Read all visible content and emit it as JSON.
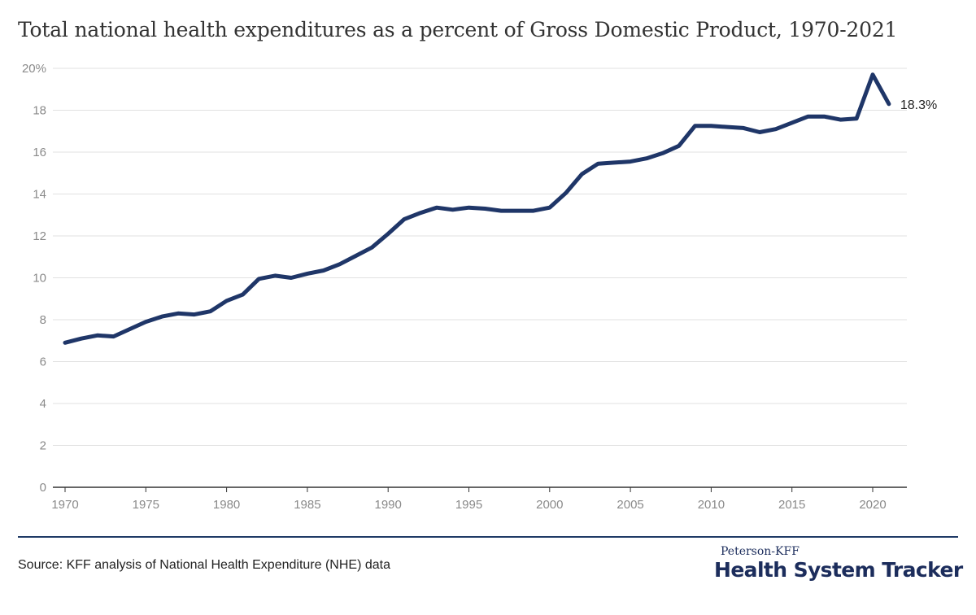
{
  "title": "Total national health expenditures as a percent of Gross Domestic Product, 1970-2021",
  "source": "Source: KFF analysis of National Health Expenditure (NHE) data",
  "brand": {
    "top": "Peterson-KFF",
    "main": "Health System Tracker"
  },
  "colors": {
    "line": "#1f3668",
    "grid": "#e1e1e1",
    "axis": "#333333",
    "divider": "#1f3a66"
  },
  "chart_data": {
    "type": "line",
    "title": "Total national health expenditures as a percent of Gross Domestic Product, 1970-2021",
    "xlabel": "",
    "ylabel": "",
    "xlim": [
      1970,
      2021
    ],
    "ylim": [
      0,
      20
    ],
    "grid": true,
    "y_ticks": [
      {
        "value": 0,
        "label": "0"
      },
      {
        "value": 2,
        "label": "2"
      },
      {
        "value": 4,
        "label": "4"
      },
      {
        "value": 6,
        "label": "6"
      },
      {
        "value": 8,
        "label": "8"
      },
      {
        "value": 10,
        "label": "10"
      },
      {
        "value": 12,
        "label": "12"
      },
      {
        "value": 14,
        "label": "14"
      },
      {
        "value": 16,
        "label": "16"
      },
      {
        "value": 18,
        "label": "18"
      },
      {
        "value": 20,
        "label": "20%"
      }
    ],
    "x_ticks": [
      {
        "value": 1970,
        "label": "1970"
      },
      {
        "value": 1975,
        "label": "1975"
      },
      {
        "value": 1980,
        "label": "1980"
      },
      {
        "value": 1985,
        "label": "1985"
      },
      {
        "value": 1990,
        "label": "1990"
      },
      {
        "value": 1995,
        "label": "1995"
      },
      {
        "value": 2000,
        "label": "2000"
      },
      {
        "value": 2005,
        "label": "2005"
      },
      {
        "value": 2010,
        "label": "2010"
      },
      {
        "value": 2015,
        "label": "2015"
      },
      {
        "value": 2020,
        "label": "2020"
      }
    ],
    "end_label": "18.3%",
    "series": [
      {
        "x": [
          1970,
          1971,
          1972,
          1973,
          1974,
          1975,
          1976,
          1977,
          1978,
          1979,
          1980,
          1981,
          1982,
          1983,
          1984,
          1985,
          1986,
          1987,
          1988,
          1989,
          1990,
          1991,
          1992,
          1993,
          1994,
          1995,
          1996,
          1997,
          1998,
          1999,
          2000,
          2001,
          2002,
          2003,
          2004,
          2005,
          2006,
          2007,
          2008,
          2009,
          2010,
          2011,
          2012,
          2013,
          2014,
          2015,
          2016,
          2017,
          2018,
          2019,
          2020,
          2021
        ],
        "values": [
          6.9,
          7.1,
          7.25,
          7.2,
          7.55,
          7.9,
          8.15,
          8.3,
          8.25,
          8.4,
          8.9,
          9.2,
          9.95,
          10.1,
          10.0,
          10.2,
          10.35,
          10.65,
          11.05,
          11.45,
          12.1,
          12.8,
          13.1,
          13.35,
          13.25,
          13.35,
          13.3,
          13.2,
          13.2,
          13.2,
          13.35,
          14.05,
          14.95,
          15.45,
          15.5,
          15.55,
          15.7,
          15.95,
          16.3,
          17.25,
          17.25,
          17.2,
          17.15,
          16.95,
          17.1,
          17.4,
          17.7,
          17.7,
          17.55,
          17.6,
          19.7,
          18.3
        ]
      }
    ]
  }
}
